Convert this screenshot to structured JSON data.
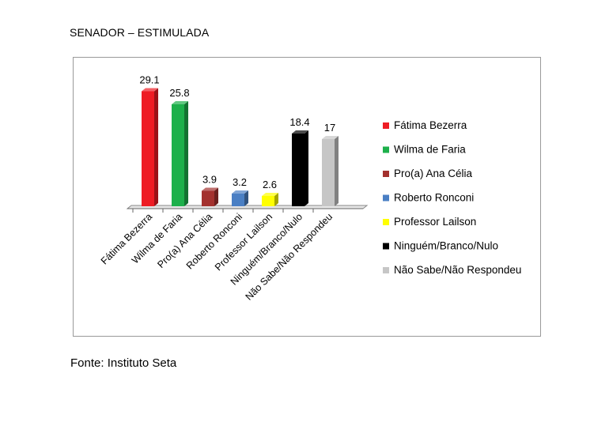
{
  "heading": "SENADOR – ESTIMULADA",
  "source": "Fonte: Instituto Seta",
  "chart_data": {
    "type": "bar",
    "title": "",
    "xlabel": "",
    "ylabel": "",
    "ylim": [
      0,
      30
    ],
    "grid": false,
    "legend_position": "right",
    "categories": [
      "Fátima Bezerra",
      "Wilma de Faria",
      "Pro(a) Ana Célia",
      "Roberto Ronconi",
      "Professor Lailson",
      "Ninguém/Branco/Nulo",
      "Não Sabe/Não Respondeu"
    ],
    "values": [
      29.1,
      25.8,
      3.9,
      3.2,
      2.6,
      18.4,
      17
    ],
    "data_labels": [
      "29.1",
      "25.8",
      "3.9",
      "3.2",
      "2.6",
      "18.4",
      "17"
    ],
    "colors": [
      "#ee1c24",
      "#1db04b",
      "#a3312e",
      "#4a7fc4",
      "#ffff00",
      "#000000",
      "#c6c6c6"
    ],
    "legend": [
      "Fátima Bezerra",
      "Wilma de Faria",
      "Pro(a) Ana Célia",
      "Roberto Ronconi",
      "Professor Lailson",
      "Ninguém/Branco/Nulo",
      "Não Sabe/Não Respondeu"
    ]
  }
}
